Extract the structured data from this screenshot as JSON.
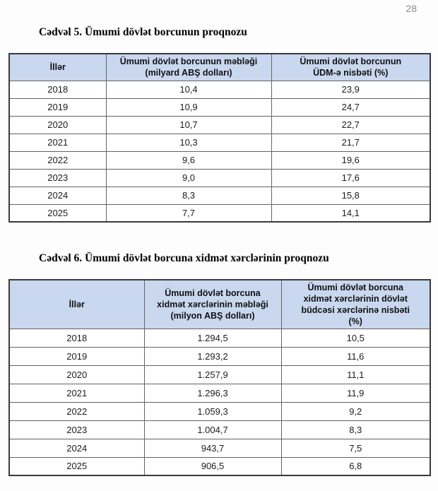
{
  "page_number": "28",
  "colors": {
    "header_fill": "#c9d8ef",
    "outer_border": "#3a3a3a",
    "inner_border": "#636363",
    "page_number_gray": "#8a8a8a",
    "text": "#1c1c1c"
  },
  "table5": {
    "title": "Cədvəl 5. Ümumi dövlət borcunun proqnozu",
    "headers": [
      "İllər",
      "Ümumi dövlət borcunun məbləği\n(milyard ABŞ dolları)",
      "Ümumi dövlət borcunun\nÜDM-ə nisbəti (%)"
    ],
    "rows": [
      [
        "2018",
        "10,4",
        "23,9"
      ],
      [
        "2019",
        "10,9",
        "24,7"
      ],
      [
        "2020",
        "10,7",
        "22,7"
      ],
      [
        "2021",
        "10,3",
        "21,7"
      ],
      [
        "2022",
        "9,6",
        "19,6"
      ],
      [
        "2023",
        "9,0",
        "17,6"
      ],
      [
        "2024",
        "8,3",
        "15,8"
      ],
      [
        "2025",
        "7,7",
        "14,1"
      ]
    ]
  },
  "table6": {
    "title": "Cədvəl 6. Ümumi dövlət borcuna xidmət xərclərinin proqnozu",
    "headers": [
      "İllər",
      "Ümumi dövlət borcuna\nxidmət xərclərinin məbləği\n(milyon ABŞ dolları)",
      "Ümumi dövlət borcuna\nxidmət xərclərinin dövlət\nbüdcəsi xərclərinə nisbəti\n(%)"
    ],
    "rows": [
      [
        "2018",
        "1.294,5",
        "10,5"
      ],
      [
        "2019",
        "1.293,2",
        "11,6"
      ],
      [
        "2020",
        "1.257,9",
        "11,1"
      ],
      [
        "2021",
        "1.296,3",
        "11,9"
      ],
      [
        "2022",
        "1.059,3",
        "9,2"
      ],
      [
        "2023",
        "1.004,7",
        "8,3"
      ],
      [
        "2024",
        "943,7",
        "7,5"
      ],
      [
        "2025",
        "906,5",
        "6,8"
      ]
    ]
  }
}
